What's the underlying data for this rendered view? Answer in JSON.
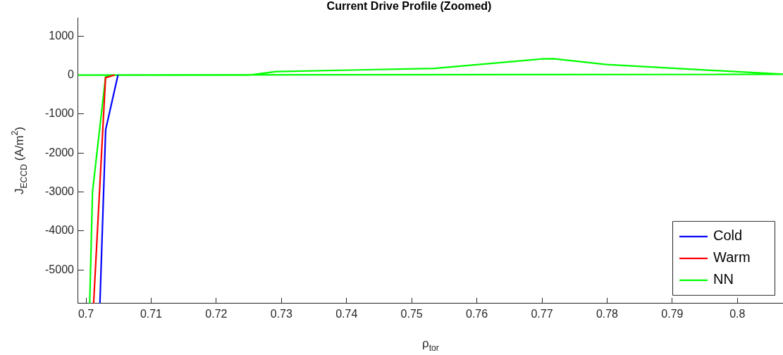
{
  "chart_data": {
    "type": "line",
    "title": "Current Drive Profile (Zoomed)",
    "xlabel": "ρ$_{tor}$",
    "ylabel": "J$_{ECCD}$ (A/m$^{2}$)",
    "xlim": [
      0.6988,
      0.807
    ],
    "ylim": [
      -5860,
      1470
    ],
    "xticks": [
      0.7,
      0.71,
      0.72,
      0.73,
      0.74,
      0.75,
      0.76,
      0.77,
      0.78,
      0.79,
      0.8
    ],
    "yticks": [
      -5000,
      -4000,
      -3000,
      -2000,
      -1000,
      0,
      1000
    ],
    "grid": false,
    "legend": "bottom right",
    "marker": "none",
    "line_style": "solid",
    "series": [
      {
        "name": "Cold",
        "color": "#0000ff",
        "x": [
          0.70214,
          0.70302,
          0.70491
        ],
        "values": [
          -5860,
          -1400,
          0
        ]
      },
      {
        "name": "Warm",
        "color": "#ff0000",
        "x": [
          0.70117,
          0.703,
          0.7044
        ],
        "values": [
          -5860,
          -70,
          0
        ]
      },
      {
        "name": "NN",
        "color": "#00ff00",
        "x": [
          0.70057,
          0.701,
          0.703,
          0.704,
          0.72507,
          0.72917,
          0.75347,
          0.77008,
          0.77179,
          0.77994,
          0.807,
          0.6988
        ],
        "values": [
          -5860,
          -3000,
          -50,
          0,
          0,
          90,
          170,
          415,
          420,
          270,
          20,
          0
        ]
      }
    ]
  }
}
